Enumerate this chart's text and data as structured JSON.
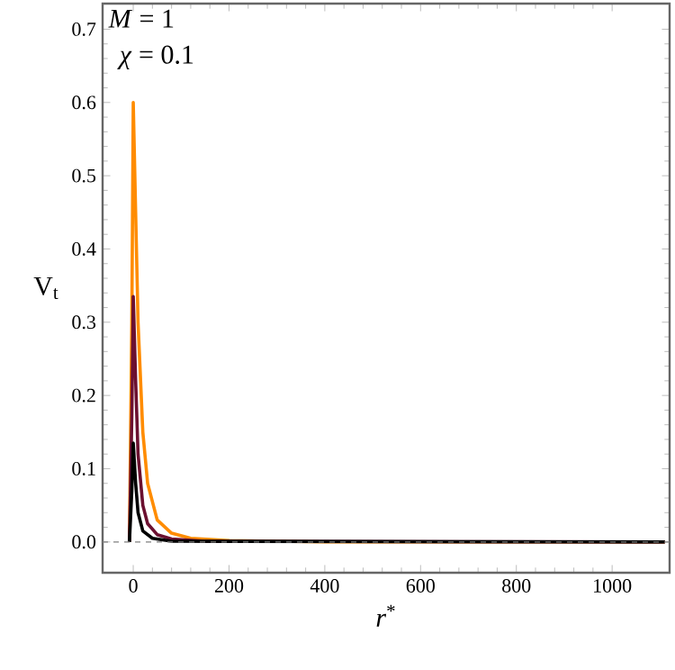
{
  "chart_data": {
    "type": "line",
    "xlabel": "*r*$^{*}$",
    "ylabel": "V$_{t}$",
    "annotations": [
      "*M* = 1",
      "*χ* = 0.1"
    ],
    "xlim": [
      -64,
      1120
    ],
    "ylim": [
      -0.042,
      0.735
    ],
    "xticks": [
      0,
      200,
      400,
      600,
      800,
      1000
    ],
    "yticks": [
      {
        "value": 0,
        "label": "0.0"
      },
      {
        "value": 0.1,
        "label": "0.1"
      },
      {
        "value": 0.2,
        "label": "0.2"
      },
      {
        "value": 0.3,
        "label": "0.3"
      },
      {
        "value": 0.4,
        "label": "0.4"
      },
      {
        "value": 0.5,
        "label": "0.5"
      },
      {
        "value": 0.6,
        "label": "0.6"
      },
      {
        "value": 0.7,
        "label": "0.7"
      }
    ],
    "ref_lines": [
      {
        "axis": "y",
        "value": 0,
        "color": "#808080",
        "line_style": "dashed"
      }
    ],
    "grid": false,
    "marker": "none",
    "line_style": "solid",
    "series": [
      {
        "color": "#ff8c00",
        "x": [
          -8,
          -3,
          0,
          5,
          10,
          20,
          30,
          50,
          80,
          120,
          200,
          400,
          1110
        ],
        "values": [
          0.0,
          0.3,
          0.6,
          0.45,
          0.3,
          0.15,
          0.08,
          0.03,
          0.012,
          0.005,
          0.002,
          0.0,
          0.0
        ]
      },
      {
        "color": "#6b1030",
        "x": [
          -8,
          -3,
          0,
          5,
          10,
          20,
          30,
          50,
          80,
          150,
          1110
        ],
        "values": [
          0.0,
          0.17,
          0.335,
          0.22,
          0.12,
          0.05,
          0.025,
          0.01,
          0.004,
          0.001,
          0.0
        ]
      },
      {
        "color": "#000000",
        "x": [
          -8,
          -3,
          0,
          5,
          10,
          20,
          40,
          80,
          1110
        ],
        "values": [
          0.0,
          0.07,
          0.135,
          0.08,
          0.04,
          0.015,
          0.005,
          0.001,
          0.0
        ]
      }
    ]
  }
}
